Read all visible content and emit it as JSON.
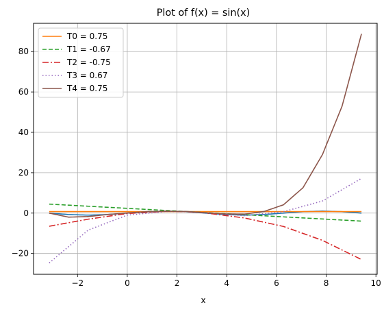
{
  "chart_data": {
    "type": "line",
    "title": "Plot of f(x) = sin(x)",
    "xlabel": "x",
    "ylabel": "",
    "xlim": [
      -3.77,
      10.05
    ],
    "ylim": [
      -30.3,
      94.0
    ],
    "xticks": [
      -2,
      0,
      2,
      4,
      6,
      8,
      10
    ],
    "yticks": [
      -20,
      0,
      20,
      40,
      60,
      80
    ],
    "grid": true,
    "legend_position": "top-left",
    "colors": {
      "sin": "#1f77b4",
      "T0": "#ff7f0e",
      "T1": "#2ca02c",
      "T2": "#d62728",
      "T3": "#9467bd",
      "T4": "#8c564b",
      "grid": "#b0b0b0"
    },
    "x_range": [
      -3.14159,
      9.42478
    ],
    "series": [
      {
        "key": "sin",
        "name": "",
        "style": "solid",
        "color": "#1f77b4",
        "x": [
          -3.14,
          -2.36,
          -1.57,
          -0.79,
          0.0,
          0.79,
          1.57,
          2.36,
          3.14,
          3.93,
          4.71,
          5.5,
          6.28,
          7.07,
          7.85,
          8.64,
          9.42
        ],
        "y": [
          0.0,
          -0.71,
          -1.0,
          -0.71,
          0.0,
          0.71,
          1.0,
          0.71,
          0.0,
          -0.71,
          -1.0,
          -0.71,
          0.0,
          0.71,
          1.0,
          0.71,
          0.0
        ]
      },
      {
        "key": "T0",
        "name": "T0 = 0.75",
        "style": "solid",
        "color": "#ff7f0e",
        "x": [
          -3.14,
          9.42
        ],
        "y": [
          0.75,
          0.75
        ]
      },
      {
        "key": "T1",
        "name": "T1 = -0.67",
        "style": "dashed",
        "color": "#2ca02c",
        "x": [
          -3.14,
          9.42
        ],
        "y": [
          4.46,
          -3.96
        ]
      },
      {
        "key": "T2",
        "name": "T2 = -0.75",
        "style": "dashdot",
        "color": "#d62728",
        "x": [
          -3.14,
          -1.57,
          0.0,
          1.57,
          2.3,
          3.14,
          4.71,
          6.28,
          7.85,
          9.42
        ],
        "y": [
          -6.5,
          -3.0,
          -0.2,
          0.9,
          0.75,
          0.1,
          -2.4,
          -6.6,
          -13.5,
          -23.0
        ]
      },
      {
        "key": "T3",
        "name": "T3 = 0.67",
        "style": "dotted",
        "color": "#9467bd",
        "x": [
          -3.14,
          -1.57,
          0.0,
          1.57,
          2.3,
          3.14,
          4.71,
          6.28,
          7.85,
          9.42
        ],
        "y": [
          -24.7,
          -8.4,
          -1.0,
          0.8,
          0.75,
          0.2,
          -1.3,
          0.7,
          6.0,
          17.2
        ]
      },
      {
        "key": "T4",
        "name": "T4 = 0.75",
        "style": "solid",
        "color": "#8c564b",
        "x": [
          -3.14,
          -2.36,
          -1.57,
          -0.79,
          0.0,
          0.79,
          1.57,
          2.36,
          3.14,
          3.93,
          4.71,
          5.5,
          6.28,
          7.07,
          7.85,
          8.64,
          9.42
        ],
        "y": [
          0.0,
          -2.0,
          -1.7,
          -0.7,
          0.1,
          0.7,
          0.95,
          0.8,
          0.2,
          -0.4,
          -0.5,
          0.8,
          4.1,
          12.6,
          29.0,
          53.0,
          88.8
        ]
      }
    ]
  }
}
